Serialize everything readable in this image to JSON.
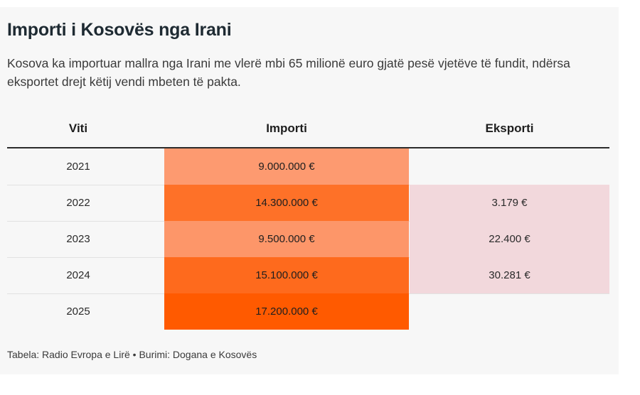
{
  "title": "Importi i Kosovës nga Irani",
  "subtitle": "Kosova ka importuar mallra nga Irani me vlerë mbi 65 milionë euro gjatë pesë vjetëve të fundit, ndërsa eksportet drejt këtij vendi mbeten të pakta.",
  "source": "Tabela: Radio Evropa e Lirë • Burimi: Dogana e Kosovës",
  "colors": {
    "import_scale_low": "#fd9a70",
    "import_scale_high": "#ff5a00",
    "export_fill": "#f2d8dc"
  },
  "chart_data": {
    "type": "table",
    "columns": [
      "Viti",
      "Importi",
      "Eksporti"
    ],
    "rows": [
      {
        "year": "2021",
        "import_label": "9.000.000 €",
        "import_value": 9000000,
        "export_label": "",
        "export_value": null
      },
      {
        "year": "2022",
        "import_label": "14.300.000 €",
        "import_value": 14300000,
        "export_label": "3.179 €",
        "export_value": 3179
      },
      {
        "year": "2023",
        "import_label": "9.500.000 €",
        "import_value": 9500000,
        "export_label": "22.400 €",
        "export_value": 22400
      },
      {
        "year": "2024",
        "import_label": "15.100.000 €",
        "import_value": 15100000,
        "export_label": "30.281 €",
        "export_value": 30281
      },
      {
        "year": "2025",
        "import_label": "17.200.000 €",
        "import_value": 17200000,
        "export_label": "",
        "export_value": null
      }
    ]
  }
}
